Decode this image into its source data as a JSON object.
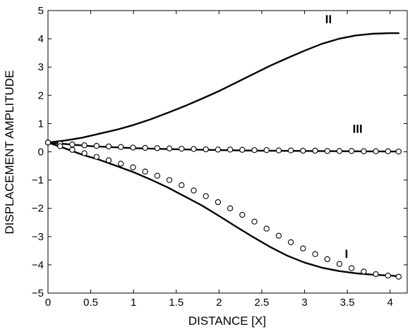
{
  "chart_data": {
    "type": "line",
    "xlabel": "DISTANCE [X]",
    "ylabel": "DISPLACEMENT  AMPLITUDE",
    "xlim": [
      0,
      4.2
    ],
    "ylim": [
      -5,
      5
    ],
    "xticks": [
      0,
      0.5,
      1,
      1.5,
      2,
      2.5,
      3,
      3.5,
      4
    ],
    "xtick_labels": [
      "0",
      "0.5",
      "1",
      "1.5",
      "2",
      "2.5",
      "3",
      "3.5",
      "4"
    ],
    "yticks": [
      -5,
      -4,
      -3,
      -2,
      -1,
      0,
      1,
      2,
      3,
      4,
      5
    ],
    "ytick_labels": [
      "−5",
      "−4",
      "−3",
      "−2",
      "−1",
      "0",
      "1",
      "2",
      "3",
      "4",
      "5"
    ],
    "grid": false,
    "line_color": "#000000",
    "series": [
      {
        "name": "II",
        "style": "solid",
        "x": [
          0,
          0.2,
          0.4,
          0.6,
          0.8,
          1.0,
          1.2,
          1.4,
          1.6,
          1.8,
          2.0,
          2.2,
          2.4,
          2.6,
          2.8,
          3.0,
          3.2,
          3.4,
          3.6,
          3.8,
          4.0,
          4.1
        ],
        "y": [
          0.33,
          0.4,
          0.5,
          0.64,
          0.78,
          0.95,
          1.15,
          1.38,
          1.62,
          1.88,
          2.15,
          2.45,
          2.75,
          3.05,
          3.32,
          3.58,
          3.82,
          4.0,
          4.12,
          4.18,
          4.2,
          4.2
        ]
      },
      {
        "name": "III",
        "style": "solid",
        "x": [
          0,
          0.5,
          1.0,
          1.5,
          2.0,
          2.5,
          3.0,
          3.5,
          4.1
        ],
        "y": [
          0.33,
          0.2,
          0.13,
          0.09,
          0.06,
          0.04,
          0.03,
          0.02,
          0.01
        ]
      },
      {
        "name": "III",
        "style": "markers",
        "x": [
          0,
          0.142,
          0.284,
          0.426,
          0.568,
          0.71,
          0.852,
          0.994,
          1.136,
          1.278,
          1.42,
          1.562,
          1.704,
          1.846,
          1.988,
          2.13,
          2.272,
          2.414,
          2.556,
          2.698,
          2.84,
          2.982,
          3.124,
          3.266,
          3.408,
          3.55,
          3.692,
          3.834,
          3.976,
          4.1
        ],
        "y": [
          0.33,
          0.29,
          0.26,
          0.23,
          0.21,
          0.19,
          0.17,
          0.15,
          0.14,
          0.13,
          0.12,
          0.11,
          0.1,
          0.09,
          0.08,
          0.08,
          0.07,
          0.06,
          0.06,
          0.05,
          0.05,
          0.04,
          0.04,
          0.03,
          0.03,
          0.03,
          0.02,
          0.02,
          0.02,
          0.01
        ]
      },
      {
        "name": "I",
        "style": "solid",
        "x": [
          0,
          0.2,
          0.4,
          0.6,
          0.8,
          1.0,
          1.2,
          1.4,
          1.6,
          1.8,
          2.0,
          2.2,
          2.4,
          2.6,
          2.8,
          3.0,
          3.2,
          3.4,
          3.6,
          3.8,
          4.0,
          4.1
        ],
        "y": [
          0.33,
          0.12,
          -0.1,
          -0.28,
          -0.5,
          -0.72,
          -0.98,
          -1.26,
          -1.58,
          -1.9,
          -2.27,
          -2.65,
          -3.02,
          -3.37,
          -3.68,
          -3.92,
          -4.1,
          -4.22,
          -4.3,
          -4.35,
          -4.38,
          -4.4
        ]
      },
      {
        "name": "I",
        "style": "markers",
        "x": [
          0,
          0.142,
          0.284,
          0.426,
          0.568,
          0.71,
          0.852,
          0.994,
          1.136,
          1.278,
          1.42,
          1.562,
          1.704,
          1.846,
          1.988,
          2.13,
          2.272,
          2.414,
          2.556,
          2.698,
          2.84,
          2.982,
          3.124,
          3.266,
          3.408,
          3.55,
          3.692,
          3.834,
          3.976,
          4.1
        ],
        "y": [
          0.33,
          0.2,
          0.07,
          -0.05,
          -0.18,
          -0.3,
          -0.42,
          -0.55,
          -0.7,
          -0.85,
          -1.0,
          -1.18,
          -1.37,
          -1.57,
          -1.78,
          -2.0,
          -2.23,
          -2.47,
          -2.72,
          -2.97,
          -3.2,
          -3.42,
          -3.62,
          -3.8,
          -3.97,
          -4.12,
          -4.24,
          -4.33,
          -4.38,
          -4.42
        ]
      }
    ],
    "annotations": [
      {
        "text": "II",
        "x": 3.28,
        "y": 4.55
      },
      {
        "text": "III",
        "x": 3.62,
        "y": 0.67
      },
      {
        "text": "I",
        "x": 3.49,
        "y": -3.75
      }
    ]
  }
}
